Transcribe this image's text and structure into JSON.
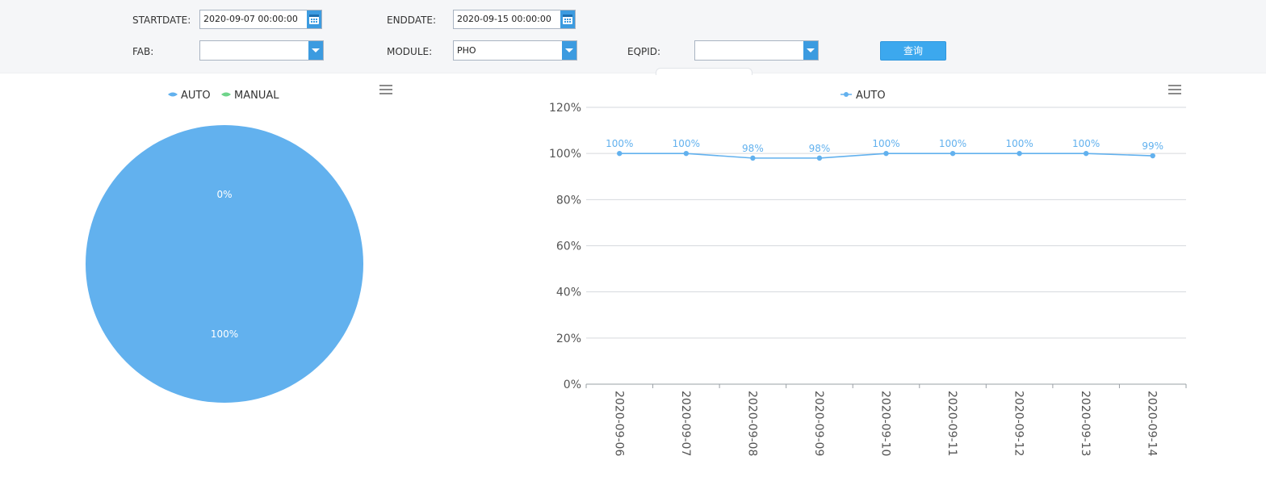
{
  "filters": {
    "startdate_label": "STARTDATE:",
    "startdate_value": "2020-09-07 00:00:00",
    "enddate_label": "ENDDATE:",
    "enddate_value": "2020-09-15 00:00:00",
    "fab_label": "FAB:",
    "fab_value": "",
    "module_label": "MODULE:",
    "module_value": "PHO",
    "eqpid_label": "EQPID:",
    "eqpid_value": "",
    "query_button": "查询",
    "calendar_icon": "calendar-icon",
    "dropdown_icon": "chevron-down-icon",
    "accent_color": "#3c9be0"
  },
  "chart_data": [
    {
      "type": "pie",
      "legend": [
        "AUTO",
        "MANUAL"
      ],
      "legend_position": "top",
      "colors": [
        "#62b1ee",
        "#6fd48a"
      ],
      "series": [
        {
          "name": "AUTO",
          "value": 100,
          "label": "100%"
        },
        {
          "name": "MANUAL",
          "value": 0,
          "label": "0%"
        }
      ],
      "menu_icon": "hamburger-menu-icon"
    },
    {
      "type": "line",
      "legend": [
        "AUTO"
      ],
      "legend_position": "top",
      "color": "#62b1ee",
      "categories": [
        "2020-09-06",
        "2020-09-07",
        "2020-09-08",
        "2020-09-09",
        "2020-09-10",
        "2020-09-11",
        "2020-09-12",
        "2020-09-13",
        "2020-09-14"
      ],
      "series": [
        {
          "name": "AUTO",
          "values": [
            100,
            100,
            98,
            98,
            100,
            100,
            100,
            100,
            99
          ],
          "labels": [
            "100%",
            "100%",
            "98%",
            "98%",
            "100%",
            "100%",
            "100%",
            "100%",
            "99%"
          ]
        }
      ],
      "ylim": [
        0,
        120
      ],
      "yticks": [
        "0%",
        "20%",
        "40%",
        "60%",
        "80%",
        "100%",
        "120%"
      ],
      "grid": true,
      "menu_icon": "hamburger-menu-icon"
    }
  ]
}
